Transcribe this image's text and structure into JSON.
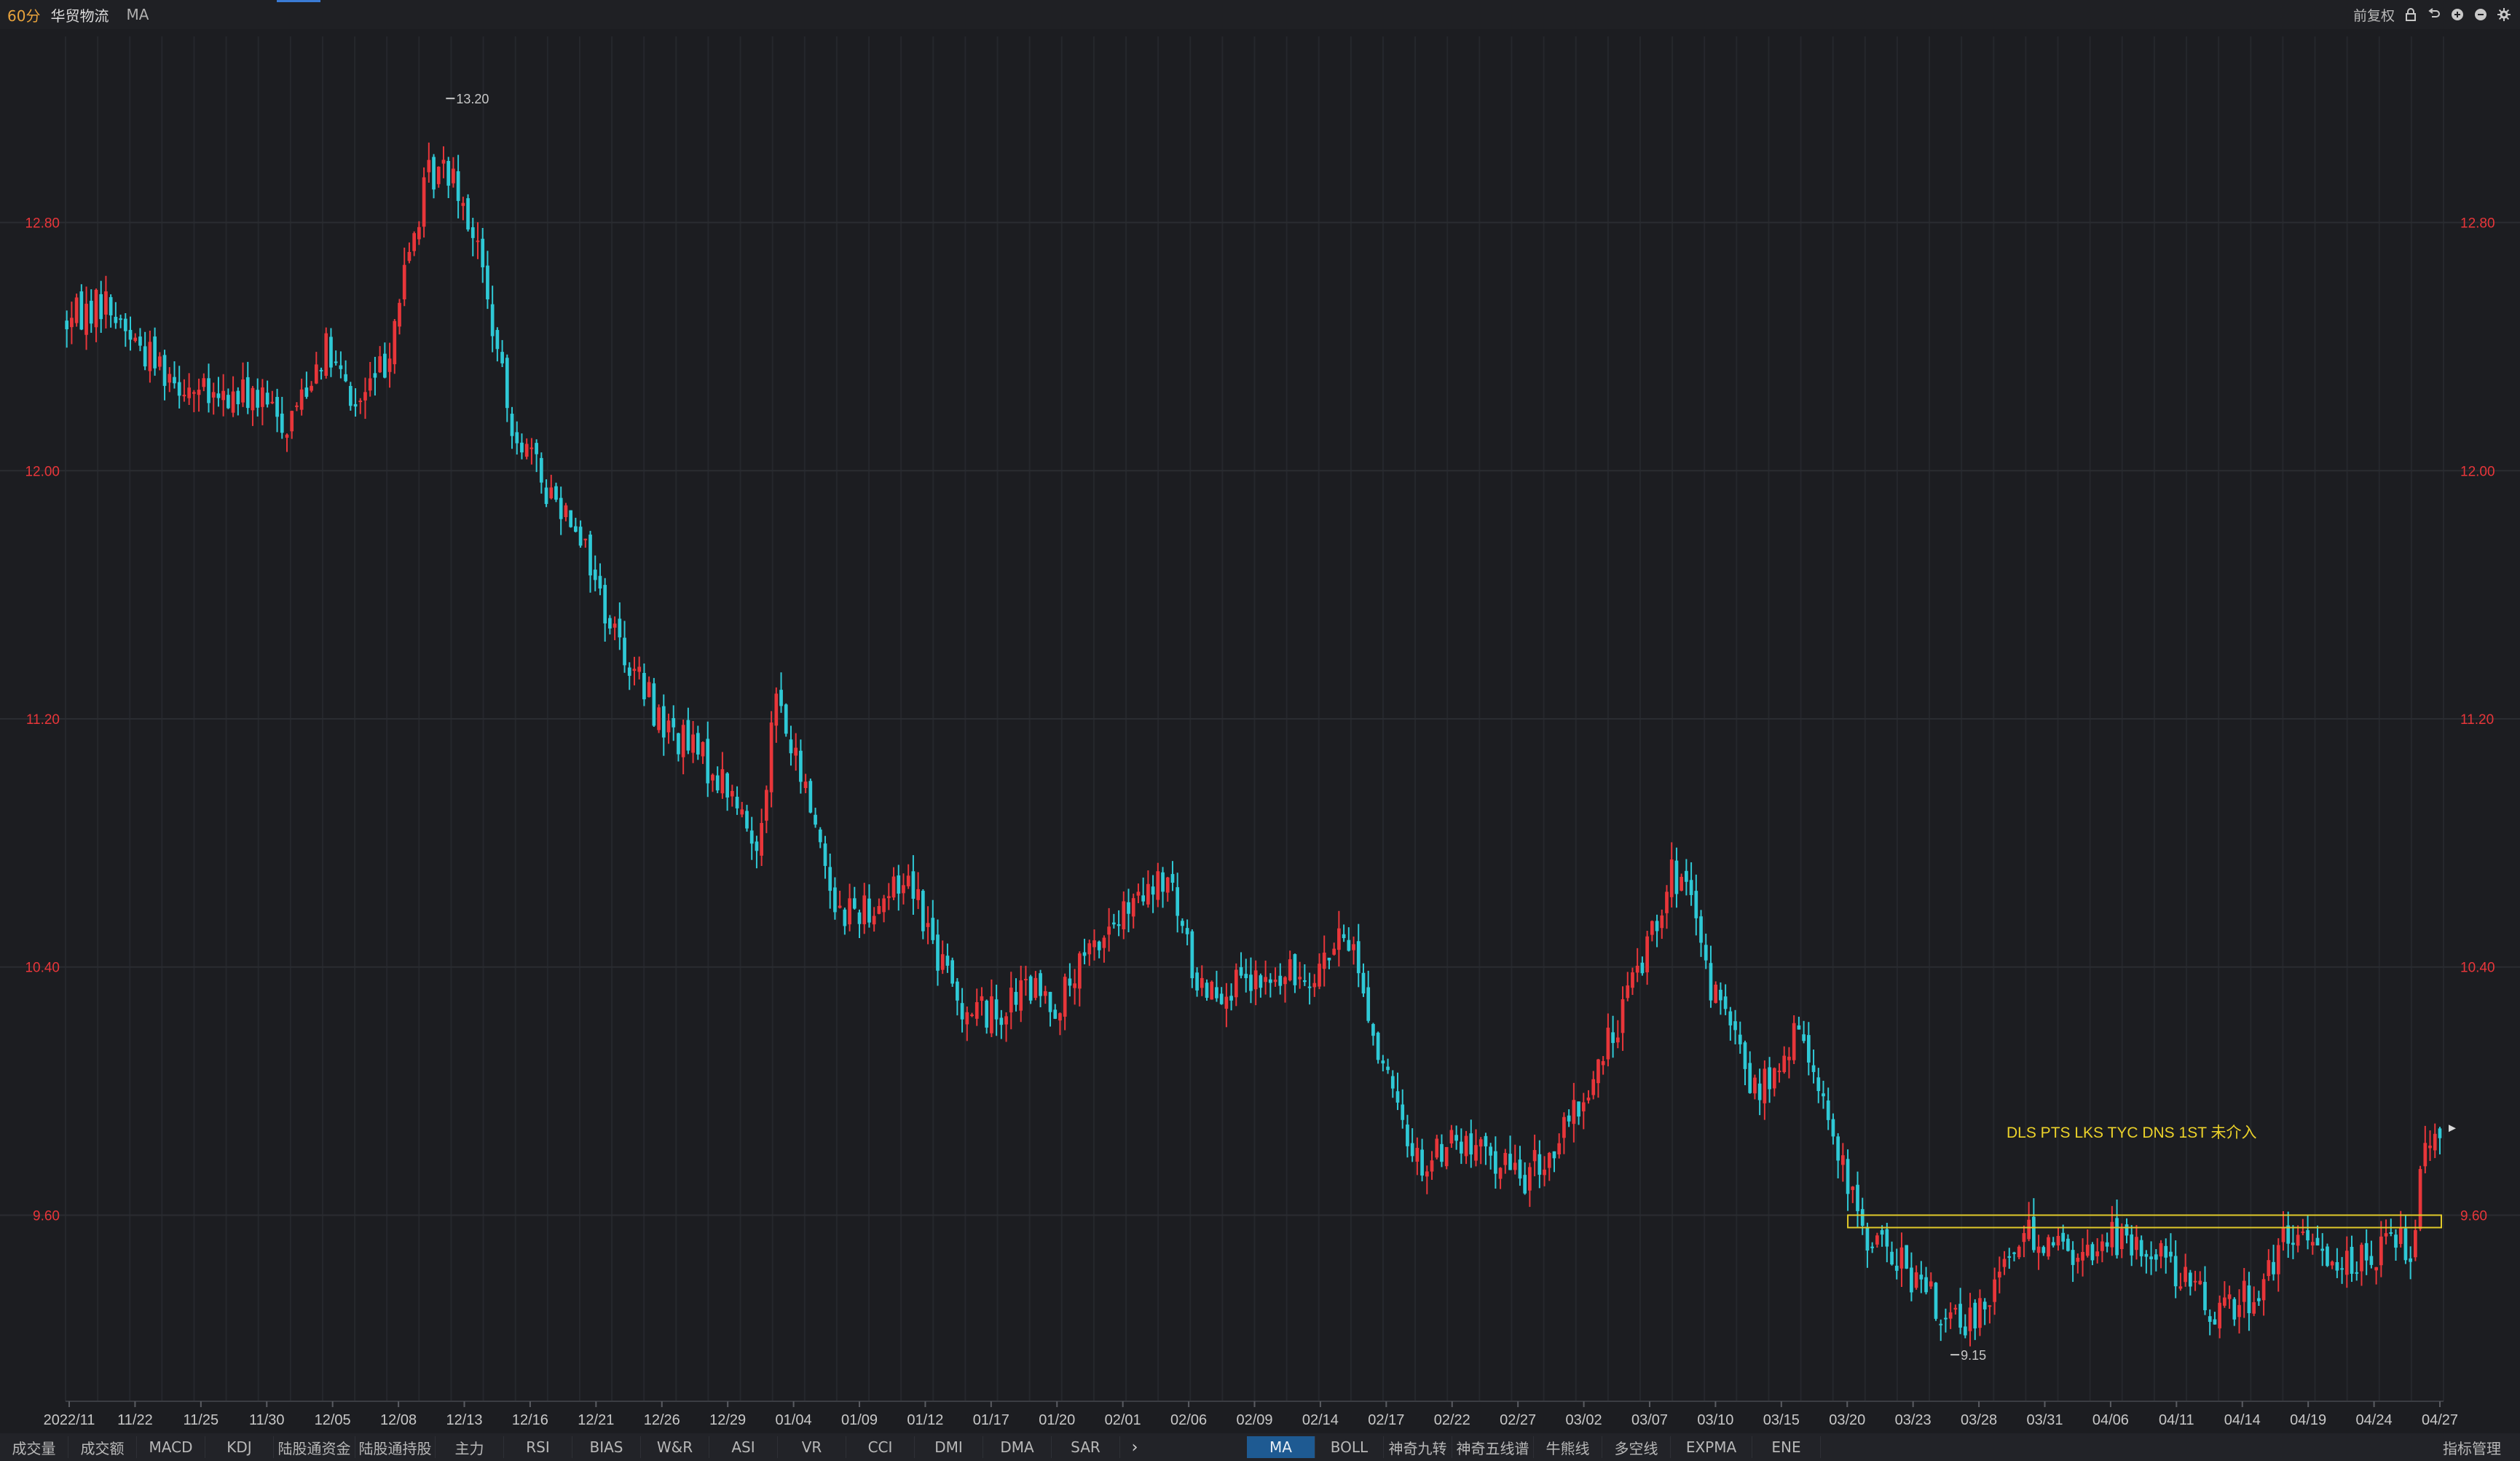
{
  "header": {
    "period": "60分",
    "stock_name": "华贸物流",
    "indicator": "MA",
    "adjust_label": "前复权"
  },
  "chart_data": {
    "type": "candlestick",
    "ylim": [
      9.0,
      13.4
    ],
    "y_ticks": [
      12.8,
      12.0,
      11.2,
      10.4,
      9.6
    ],
    "y_tick_labels": [
      "12.80",
      "12.00",
      "11.20",
      "10.40",
      "9.60"
    ],
    "x_tick_labels": [
      "2022/11",
      "11/22",
      "11/25",
      "11/30",
      "12/05",
      "12/08",
      "12/13",
      "12/16",
      "12/21",
      "12/26",
      "12/29",
      "01/04",
      "01/09",
      "01/12",
      "01/17",
      "01/20",
      "02/01",
      "02/06",
      "02/09",
      "02/14",
      "02/17",
      "02/22",
      "02/27",
      "03/02",
      "03/07",
      "03/10",
      "03/15",
      "03/20",
      "03/23",
      "03/28",
      "03/31",
      "04/06",
      "04/11",
      "04/14",
      "04/19",
      "04/24",
      "04/27"
    ],
    "high_label": "13.20",
    "low_label": "9.15",
    "path_keypoints": [
      [
        0,
        12.48
      ],
      [
        15,
        12.55
      ],
      [
        30,
        12.4
      ],
      [
        45,
        12.3
      ],
      [
        60,
        12.22
      ],
      [
        75,
        12.25
      ],
      [
        90,
        12.15
      ],
      [
        105,
        12.4
      ],
      [
        118,
        12.2
      ],
      [
        130,
        12.35
      ],
      [
        140,
        12.7
      ],
      [
        148,
        12.95
      ],
      [
        158,
        12.98
      ],
      [
        168,
        12.72
      ],
      [
        180,
        12.2
      ],
      [
        195,
        11.95
      ],
      [
        208,
        11.85
      ],
      [
        220,
        11.55
      ],
      [
        232,
        11.35
      ],
      [
        244,
        11.18
      ],
      [
        256,
        11.1
      ],
      [
        270,
        10.98
      ],
      [
        282,
        10.78
      ],
      [
        290,
        11.28
      ],
      [
        296,
        11.1
      ],
      [
        305,
        10.9
      ],
      [
        315,
        10.58
      ],
      [
        330,
        10.6
      ],
      [
        345,
        10.7
      ],
      [
        355,
        10.45
      ],
      [
        365,
        10.28
      ],
      [
        380,
        10.25
      ],
      [
        392,
        10.33
      ],
      [
        405,
        10.28
      ],
      [
        415,
        10.4
      ],
      [
        425,
        10.52
      ],
      [
        438,
        10.6
      ],
      [
        450,
        10.68
      ],
      [
        462,
        10.35
      ],
      [
        480,
        10.33
      ],
      [
        495,
        10.35
      ],
      [
        510,
        10.4
      ],
      [
        525,
        10.5
      ],
      [
        535,
        10.15
      ],
      [
        545,
        9.9
      ],
      [
        555,
        9.75
      ],
      [
        565,
        9.85
      ],
      [
        575,
        9.8
      ],
      [
        585,
        9.78
      ],
      [
        595,
        9.72
      ],
      [
        605,
        9.78
      ],
      [
        615,
        9.9
      ],
      [
        625,
        10.05
      ],
      [
        635,
        10.25
      ],
      [
        645,
        10.45
      ],
      [
        655,
        10.7
      ],
      [
        662,
        10.65
      ],
      [
        670,
        10.38
      ],
      [
        680,
        10.2
      ],
      [
        690,
        10.0
      ],
      [
        700,
        10.05
      ],
      [
        708,
        10.2
      ],
      [
        716,
        10.05
      ],
      [
        724,
        9.78
      ],
      [
        734,
        9.55
      ],
      [
        745,
        9.48
      ],
      [
        755,
        9.4
      ],
      [
        765,
        9.3
      ],
      [
        775,
        9.22
      ],
      [
        785,
        9.35
      ],
      [
        795,
        9.5
      ],
      [
        805,
        9.55
      ],
      [
        815,
        9.5
      ],
      [
        825,
        9.45
      ],
      [
        835,
        9.55
      ],
      [
        845,
        9.48
      ],
      [
        855,
        9.5
      ],
      [
        865,
        9.4
      ],
      [
        875,
        9.3
      ],
      [
        885,
        9.32
      ],
      [
        895,
        9.35
      ],
      [
        905,
        9.5
      ],
      [
        915,
        9.52
      ],
      [
        925,
        9.48
      ],
      [
        935,
        9.45
      ],
      [
        945,
        9.47
      ],
      [
        952,
        9.55
      ],
      [
        958,
        9.48
      ],
      [
        963,
        9.8
      ],
      [
        968,
        9.9
      ],
      [
        972,
        9.88
      ]
    ],
    "candle_count": 972,
    "resistance_band": [
      9.56,
      9.6
    ],
    "annotation": "DLS PTS LKS TYC DNS 1ST  未介入",
    "colors": {
      "up": "#e8363a",
      "down": "#2fc9d6",
      "grid": "#2a2c31",
      "band": "#e0c92a",
      "axis_label_red": "#e8363a",
      "annotation": "#ecd22a"
    }
  },
  "top_tools": [
    {
      "name": "lock-icon",
      "glyph": "🔒"
    },
    {
      "name": "undo-icon",
      "glyph": "↶"
    },
    {
      "name": "zoom-in-icon",
      "glyph": "⊕"
    },
    {
      "name": "zoom-out-icon",
      "glyph": "⊖"
    },
    {
      "name": "settings-icon",
      "glyph": "✱"
    }
  ],
  "bottom_tabs_left": [
    "成交量",
    "成交额",
    "MACD",
    "KDJ",
    "陆股通资金",
    "陆股通持股",
    "主力",
    "RSI",
    "BIAS",
    "W&R",
    "ASI",
    "VR",
    "CCI",
    "DMI",
    "DMA",
    "SAR"
  ],
  "bottom_tabs_right": [
    "MA",
    "BOLL",
    "神奇九转",
    "神奇五线谱",
    "牛熊线",
    "多空线",
    "EXPMA",
    "ENE"
  ],
  "manage_label": "指标管理",
  "chevron": "›"
}
